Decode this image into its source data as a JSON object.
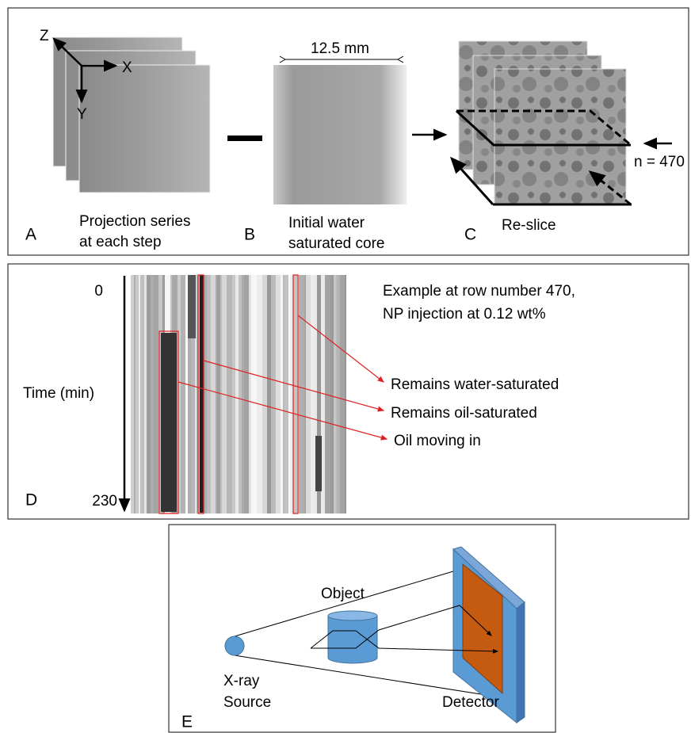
{
  "panel_a": {
    "letter": "A",
    "axes": [
      "Z",
      "X",
      "Y"
    ],
    "caption": [
      "Projection series",
      "at each step"
    ]
  },
  "panel_b": {
    "letter": "B",
    "width_label": "12.5 mm",
    "caption": [
      "Initial water",
      "saturated core"
    ]
  },
  "panel_c": {
    "letter": "C",
    "caption": "Re-slice",
    "row_label": "n = 470"
  },
  "panel_d": {
    "letter": "D",
    "time_axis": {
      "start": 0,
      "end": 230,
      "label": "Time (min)"
    },
    "note": [
      "Example at row number 470,",
      "NP injection at 0.12 wt%"
    ],
    "annotations": [
      "Remains water-saturated",
      "Remains oil-saturated",
      "Oil moving in"
    ]
  },
  "panel_e": {
    "letter": "E",
    "object": "Object",
    "source": [
      "X-ray",
      "Source"
    ],
    "detector": "Detector"
  }
}
